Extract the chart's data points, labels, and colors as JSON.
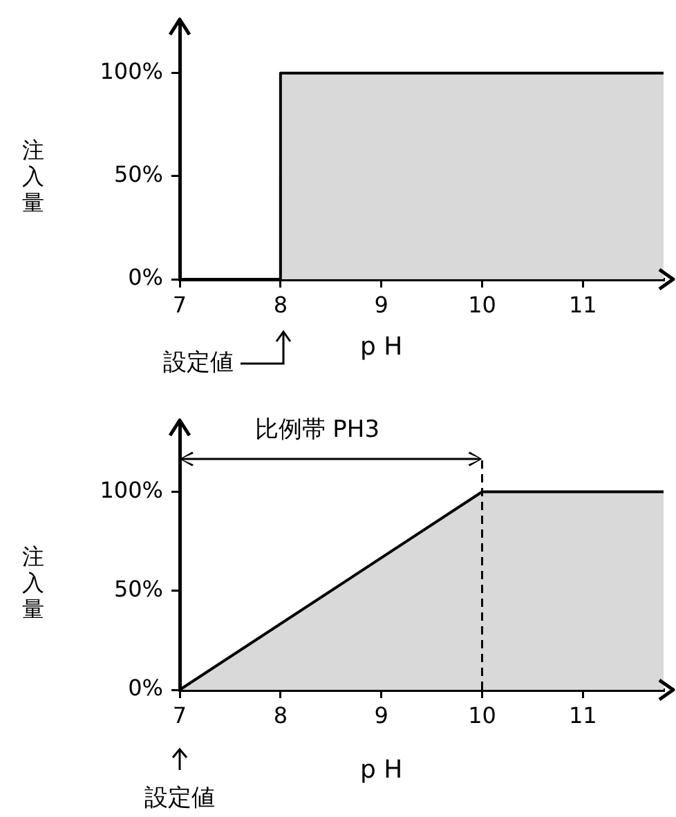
{
  "chart_data": [
    {
      "type": "area",
      "ylabel": "注入量",
      "xlabel": "p H",
      "xlim": [
        7,
        11.8
      ],
      "xticks": [
        7,
        8,
        9,
        10,
        11
      ],
      "ylim": [
        0,
        125
      ],
      "yticks": [
        {
          "value": 0,
          "label": "0%"
        },
        {
          "value": 50,
          "label": "50%"
        },
        {
          "value": 100,
          "label": "100%"
        }
      ],
      "annotations": [
        "設定値"
      ],
      "series": [
        {
          "color": "#d9d9d9",
          "x": [
            7,
            8,
            8,
            11.8
          ],
          "values": [
            0,
            0,
            100,
            100
          ]
        }
      ]
    },
    {
      "type": "area",
      "ylabel": "注入量",
      "xlabel": "p H",
      "xlim": [
        7,
        11.8
      ],
      "xticks": [
        7,
        8,
        9,
        10,
        11
      ],
      "ylim": [
        0,
        135
      ],
      "yticks": [
        {
          "value": 0,
          "label": "0%"
        },
        {
          "value": 50,
          "label": "50%"
        },
        {
          "value": 100,
          "label": "100%"
        }
      ],
      "annotations": [
        "設定値",
        "比例帯 PH3"
      ],
      "ref_lines": [
        {
          "axis": "x",
          "value": 10,
          "line_style": "dashed",
          "color": "#000000"
        }
      ],
      "series": [
        {
          "color": "#d9d9d9",
          "x": [
            7,
            10,
            11.8
          ],
          "values": [
            0,
            100,
            100
          ]
        }
      ]
    }
  ]
}
